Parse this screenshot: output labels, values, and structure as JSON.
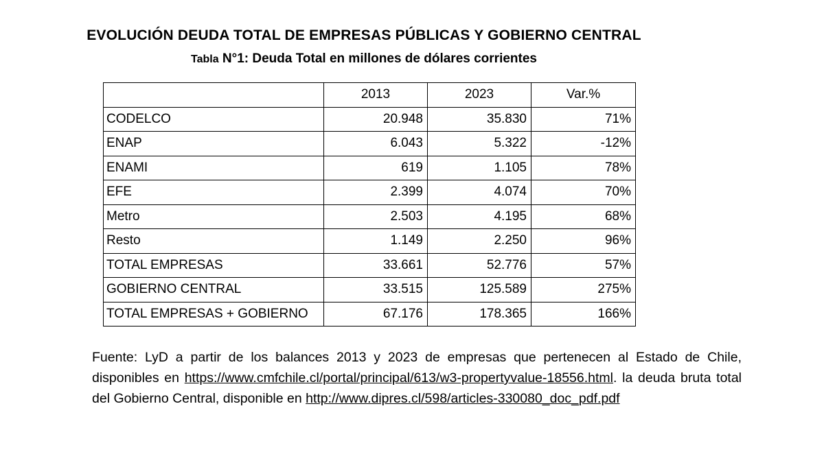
{
  "title": "EVOLUCIÓN DEUDA TOTAL DE EMPRESAS PÚBLICAS Y GOBIERNO CENTRAL",
  "subtitle": {
    "prefix": "Tabla",
    "rest": " N°1: Deuda Total en millones de dólares corrientes"
  },
  "table": {
    "headers": [
      "",
      "2013",
      "2023",
      "Var.%"
    ],
    "rows": [
      {
        "name": "CODELCO",
        "y2013": "20.948",
        "y2023": "35.830",
        "var": "71%"
      },
      {
        "name": "ENAP",
        "y2013": "6.043",
        "y2023": "5.322",
        "var": "-12%"
      },
      {
        "name": "ENAMI",
        "y2013": "619",
        "y2023": "1.105",
        "var": "78%"
      },
      {
        "name": "EFE",
        "y2013": "2.399",
        "y2023": "4.074",
        "var": "70%"
      },
      {
        "name": "Metro",
        "y2013": "2.503",
        "y2023": "4.195",
        "var": "68%"
      },
      {
        "name": "Resto",
        "y2013": "1.149",
        "y2023": "2.250",
        "var": "96%"
      },
      {
        "name": "TOTAL EMPRESAS",
        "y2013": "33.661",
        "y2023": "52.776",
        "var": "57%"
      },
      {
        "name": "GOBIERNO CENTRAL",
        "y2013": "33.515",
        "y2023": "125.589",
        "var": "275%"
      },
      {
        "name": "TOTAL EMPRESAS + GOBIERNO",
        "y2013": "67.176",
        "y2023": "178.365",
        "var": "166%"
      }
    ]
  },
  "source": {
    "text1": "Fuente: LyD a partir de los balances 2013 y 2023 de empresas que pertenecen al Estado de Chile, disponibles en ",
    "link1": "https://www.cmfchile.cl/portal/principal/613/w3-propertyvalue-18556.html",
    "text2": ". la deuda bruta total del Gobierno Central, disponible en ",
    "link2": "http://www.dipres.cl/598/articles-330080_doc_pdf.pdf"
  }
}
